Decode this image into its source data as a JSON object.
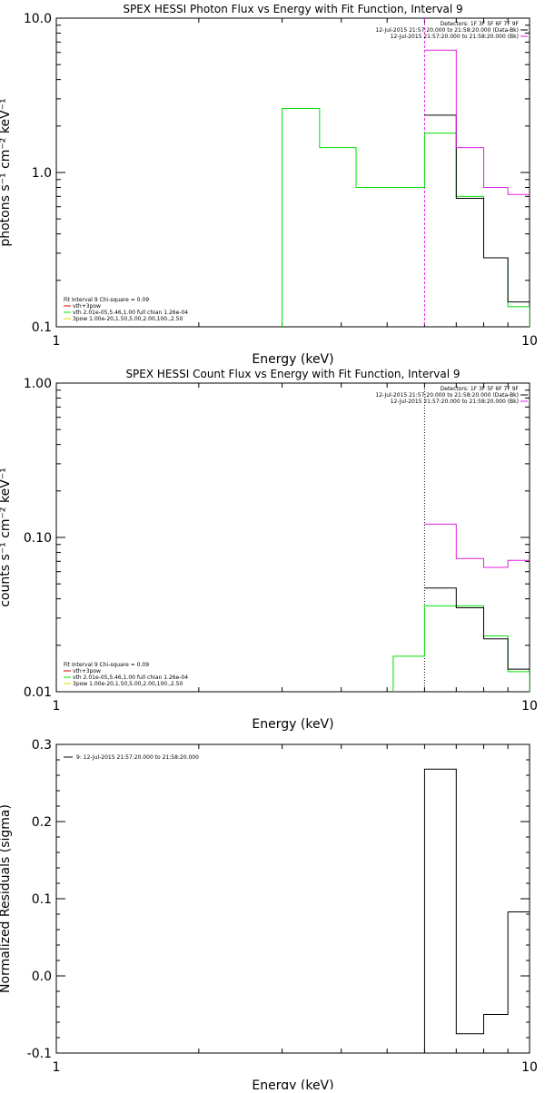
{
  "colors": {
    "background": "#ffffff",
    "axes": "#000000",
    "black": "#000000",
    "magenta": "#e020e0",
    "green": "#00e000",
    "red": "#e00000",
    "yellow": "#d8d800",
    "dotted": "#000000"
  },
  "chart_data": [
    {
      "type": "line",
      "title": "SPEX HESSI Photon Flux vs Energy with Fit Function, Interval 9",
      "xlabel": "Energy (keV)",
      "ylabel": "photons s⁻¹ cm⁻² keV⁻¹",
      "xscale": "log",
      "yscale": "log",
      "xlim": [
        1,
        10
      ],
      "ylim": [
        0.1,
        10
      ],
      "xticks": [
        {
          "value": 1,
          "label": "1"
        },
        {
          "value": 10,
          "label": "10"
        }
      ],
      "yticks": [
        {
          "value": 0.1,
          "label": "0.1"
        },
        {
          "value": 1,
          "label": "1.0"
        },
        {
          "value": 10,
          "label": "10.0"
        }
      ],
      "vline": {
        "x": 6,
        "style": "dashed",
        "color": "#e020e0"
      },
      "legend_top": [
        {
          "text": "Detectors: 1F 3F 5F 6F 7F 9F",
          "color": null
        },
        {
          "text": "12-Jul-2015 21:57:20.000 to 21:58:20.000 (Data-Bk)",
          "color": "#000000"
        },
        {
          "text": "12-Jul-2015 21:57:20.000 to 21:58:20.000 (Bk)",
          "color": "#e020e0"
        }
      ],
      "legend_bottom": [
        {
          "text": "Fit Interval 9   Chi-square = 0.09",
          "color": null
        },
        {
          "text": "vth+3pow",
          "color": "#e00000"
        },
        {
          "text": "vth 2.01e-05,5.46,1.00  full chian 1.26e-04",
          "color": "#00e000"
        },
        {
          "text": "3pow 1.00e-20,1.50,5.00,2.00,100.,2.50",
          "color": "#d8d800"
        }
      ],
      "series": [
        {
          "color": "#00e000",
          "edges": [
            3.0,
            3.6,
            4.3,
            5.15,
            6.0,
            7.0,
            8.0,
            9.0,
            10.0
          ],
          "values": [
            2.6,
            1.45,
            0.8,
            0.8,
            1.8,
            0.7,
            0.28,
            0.135
          ],
          "from_floor": true
        },
        {
          "color": "#000000",
          "edges": [
            6.0,
            7.0,
            8.0,
            9.0,
            10.0
          ],
          "values": [
            2.35,
            0.68,
            0.28,
            0.145
          ],
          "from_floor": false
        },
        {
          "color": "#e020e0",
          "edges": [
            6.0,
            7.0,
            8.0,
            9.0,
            10.0
          ],
          "values": [
            6.2,
            1.45,
            0.8,
            0.72
          ],
          "from_floor": false
        }
      ]
    },
    {
      "type": "line",
      "title": "SPEX HESSI Count Flux vs Energy with Fit Function, Interval 9",
      "xlabel": "Energy (keV)",
      "ylabel": "counts s⁻¹ cm⁻² keV⁻¹",
      "xscale": "log",
      "yscale": "log",
      "xlim": [
        1,
        10
      ],
      "ylim": [
        0.01,
        1
      ],
      "xticks": [
        {
          "value": 1,
          "label": "1"
        },
        {
          "value": 10,
          "label": "10"
        }
      ],
      "yticks": [
        {
          "value": 0.01,
          "label": "0.01"
        },
        {
          "value": 0.1,
          "label": "0.10"
        },
        {
          "value": 1,
          "label": "1.00"
        }
      ],
      "vline": {
        "x": 6,
        "style": "dotted",
        "color": "#000000"
      },
      "legend_top": [
        {
          "text": "Detectors: 1F 3F 5F 6F 7F 9F",
          "color": null
        },
        {
          "text": "12-Jul-2015 21:57:20.000 to 21:58:20.000 (Data-Bk)",
          "color": "#000000"
        },
        {
          "text": "12-Jul-2015 21:57:20.000 to 21:58:20.000 (Bk)",
          "color": "#e020e0"
        }
      ],
      "legend_bottom": [
        {
          "text": "Fit Interval 9   Chi-square = 0.09",
          "color": null
        },
        {
          "text": "vth+3pow",
          "color": "#e00000"
        },
        {
          "text": "vth 2.01e-05,5.46,1.00  full chian 1.26e-04",
          "color": "#00e000"
        },
        {
          "text": "3pow 1.00e-20,1.50,5.00,2.00,100.,2.50",
          "color": "#d8d800"
        }
      ],
      "series": [
        {
          "color": "#00e000",
          "edges": [
            5.15,
            6.0,
            7.0,
            8.0,
            9.0,
            10.0
          ],
          "values": [
            0.017,
            0.036,
            0.036,
            0.023,
            0.0135
          ],
          "from_floor": true
        },
        {
          "color": "#000000",
          "edges": [
            6.0,
            7.0,
            8.0,
            9.0,
            10.0
          ],
          "values": [
            0.047,
            0.035,
            0.022,
            0.014
          ],
          "from_floor": false
        },
        {
          "color": "#e020e0",
          "edges": [
            6.0,
            7.0,
            8.0,
            9.0,
            10.0
          ],
          "values": [
            0.122,
            0.073,
            0.064,
            0.071
          ],
          "from_floor": false
        }
      ]
    },
    {
      "type": "line",
      "title": "",
      "xlabel": "Energy (keV)",
      "ylabel": "Normalized Residuals (sigma)",
      "xscale": "log",
      "yscale": "linear",
      "xlim": [
        1,
        10
      ],
      "ylim": [
        -0.1,
        0.3
      ],
      "xticks": [
        {
          "value": 1,
          "label": "1"
        },
        {
          "value": 10,
          "label": "10"
        }
      ],
      "yticks": [
        {
          "value": -0.1,
          "label": "-0.1"
        },
        {
          "value": 0.0,
          "label": "0.0"
        },
        {
          "value": 0.1,
          "label": "0.1"
        },
        {
          "value": 0.2,
          "label": "0.2"
        },
        {
          "value": 0.3,
          "label": "0.3"
        }
      ],
      "vline": null,
      "legend_top": [],
      "legend_left": [
        {
          "text": "9: 12-Jul-2015 21:57:20.000 to 21:58:20.000",
          "color": "#000000"
        }
      ],
      "legend_bottom": [],
      "series": [
        {
          "color": "#000000",
          "edges": [
            6.0,
            7.0,
            8.0,
            9.0,
            10.0
          ],
          "values": [
            0.268,
            -0.075,
            -0.05,
            0.083
          ],
          "from_floor": true
        }
      ]
    }
  ]
}
